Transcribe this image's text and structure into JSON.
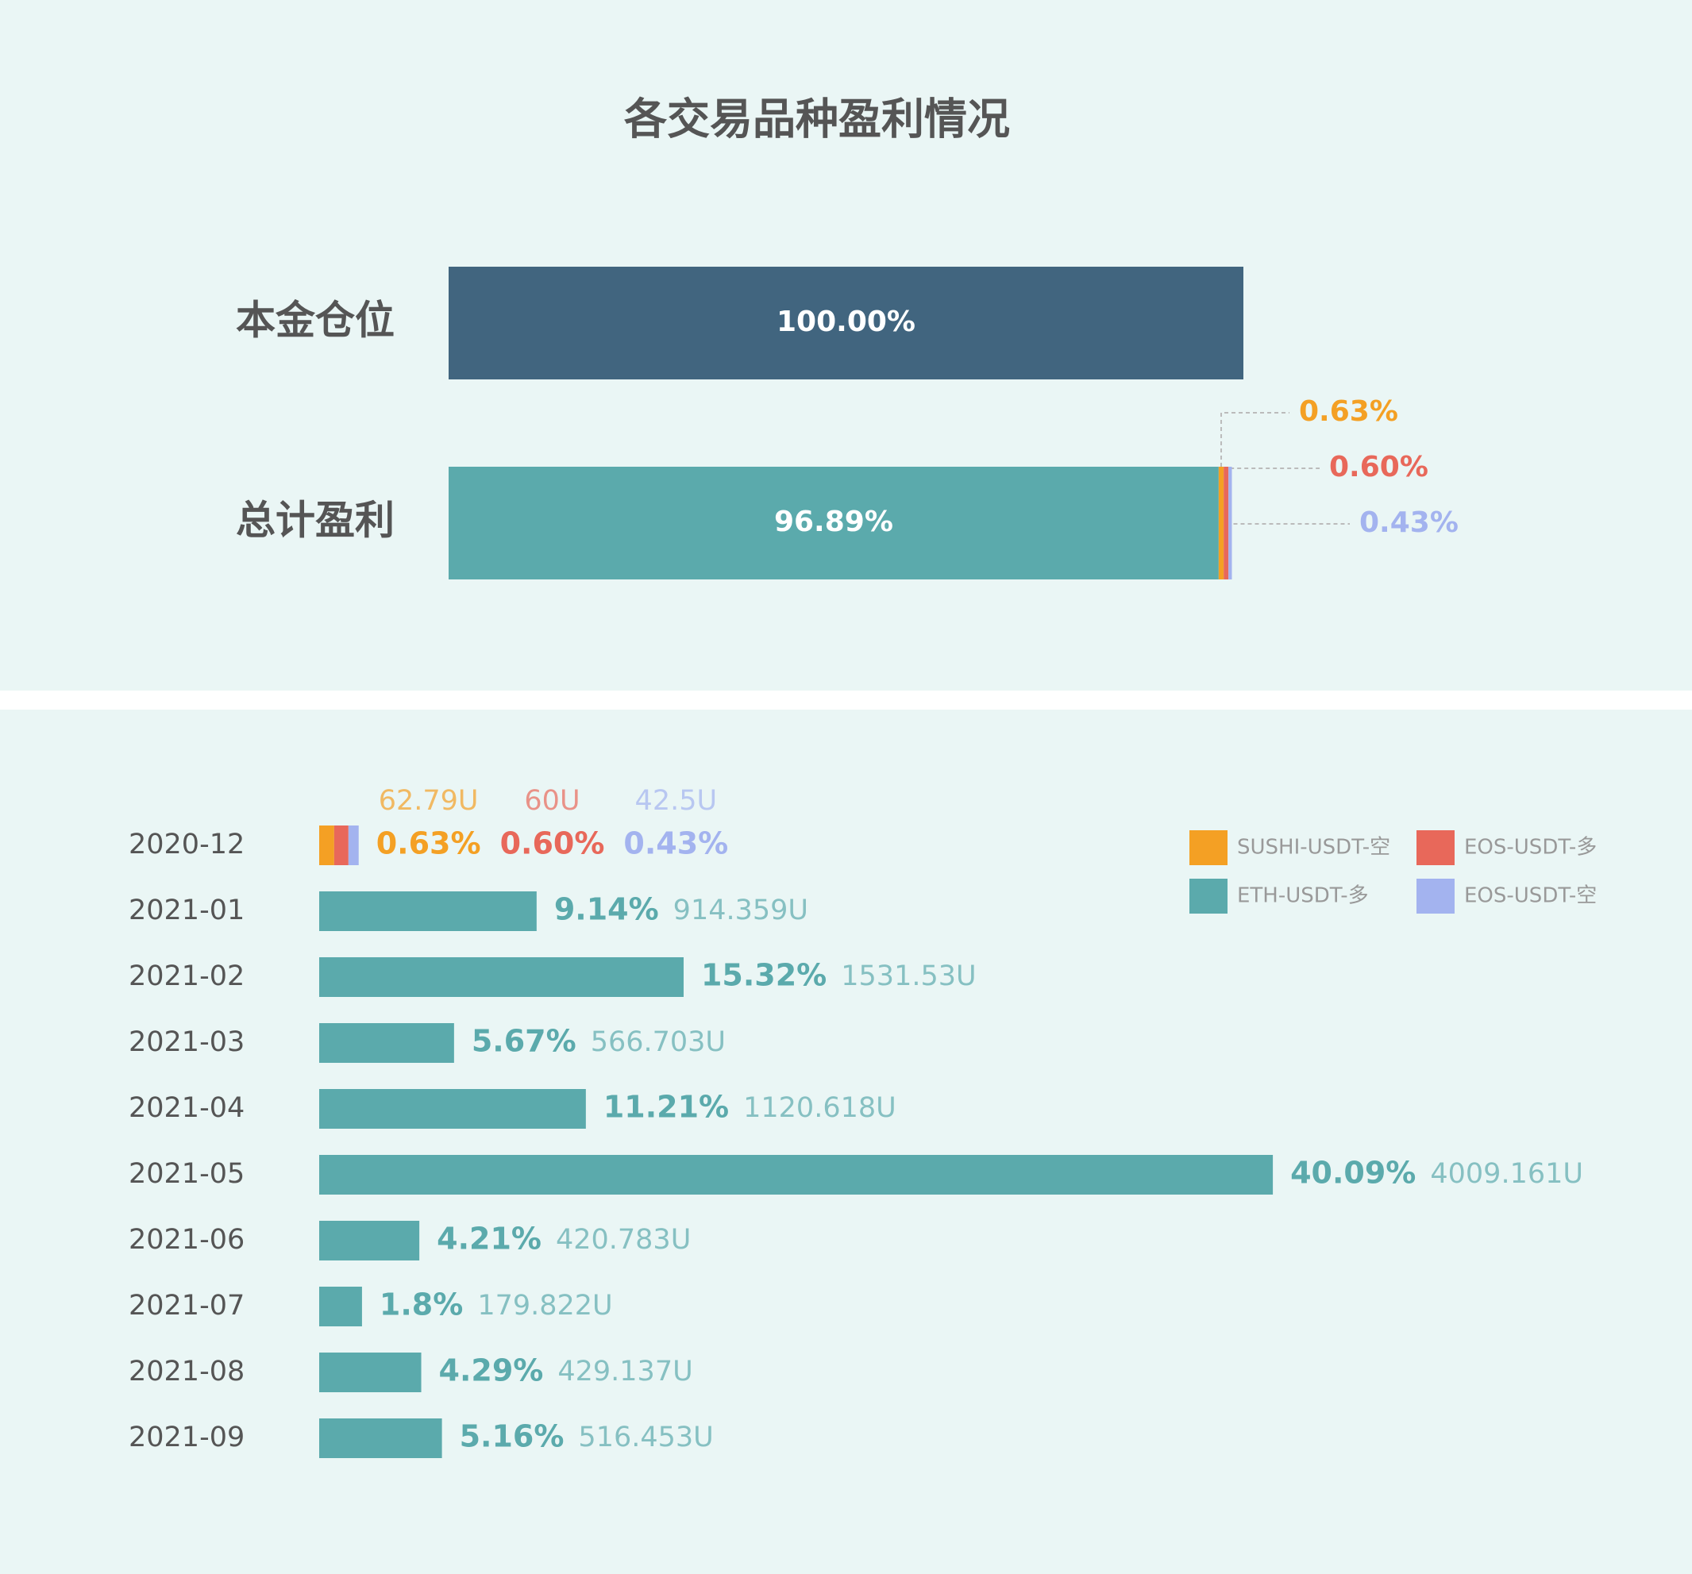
{
  "chart_data": [
    {
      "type": "stacked-bar-h",
      "title": "各交易品种盈利情况",
      "categories": [
        "本金仓位",
        "总计盈利"
      ],
      "xlim": [
        0,
        100
      ],
      "series": [
        {
          "color": "#41657f",
          "values": [
            100,
            null
          ],
          "value_labels": [
            "100.00%",
            null
          ]
        },
        {
          "color": "#5baaac",
          "values": [
            null,
            96.89
          ],
          "value_labels": [
            null,
            "96.89%"
          ]
        },
        {
          "color": "#f4a024",
          "values": [
            null,
            0.63
          ],
          "value_labels": [
            null,
            "0.63%"
          ]
        },
        {
          "color": "#e8685a",
          "values": [
            null,
            0.6
          ],
          "value_labels": [
            null,
            "0.60%"
          ]
        },
        {
          "color": "#a3b3ef",
          "values": [
            null,
            0.43
          ],
          "value_labels": [
            null,
            "0.43%"
          ]
        }
      ]
    },
    {
      "type": "stacked-bar-h",
      "categories": [
        "2020-12",
        "2021-01",
        "2021-02",
        "2021-03",
        "2021-04",
        "2021-05",
        "2021-06",
        "2021-07",
        "2021-08",
        "2021-09"
      ],
      "xlim": [
        0,
        50
      ],
      "legend": "top-right",
      "series": [
        {
          "name": "SUSHI-USDT-空",
          "color": "#f4a024",
          "values": [
            0.63,
            null,
            null,
            null,
            null,
            null,
            null,
            null,
            null,
            null
          ],
          "value_labels": [
            "0.63%",
            null,
            null,
            null,
            null,
            null,
            null,
            null,
            null,
            null
          ],
          "amounts": [
            62.79,
            null,
            null,
            null,
            null,
            null,
            null,
            null,
            null,
            null
          ],
          "amount_labels": [
            "62.79U",
            null,
            null,
            null,
            null,
            null,
            null,
            null,
            null,
            null
          ]
        },
        {
          "name": "EOS-USDT-多",
          "color": "#e8685a",
          "values": [
            0.6,
            null,
            null,
            null,
            null,
            null,
            null,
            null,
            null,
            null
          ],
          "value_labels": [
            "0.60%",
            null,
            null,
            null,
            null,
            null,
            null,
            null,
            null,
            null
          ],
          "amounts": [
            60,
            null,
            null,
            null,
            null,
            null,
            null,
            null,
            null,
            null
          ],
          "amount_labels": [
            "60U",
            null,
            null,
            null,
            null,
            null,
            null,
            null,
            null,
            null
          ]
        },
        {
          "name": "ETH-USDT-多",
          "color": "#5baaac",
          "values": [
            null,
            9.14,
            15.32,
            5.67,
            11.21,
            40.09,
            4.21,
            1.8,
            4.29,
            5.16
          ],
          "value_labels": [
            null,
            "9.14%",
            "15.32%",
            "5.67%",
            "11.21%",
            "40.09%",
            "4.21%",
            "1.8%",
            "4.29%",
            "5.16%"
          ],
          "amounts": [
            null,
            914.359,
            1531.53,
            566.703,
            1120.618,
            4009.161,
            420.783,
            179.822,
            429.137,
            516.453
          ],
          "amount_labels": [
            null,
            "914.359U",
            "1531.53U",
            "566.703U",
            "1120.618U",
            "4009.161U",
            "420.783U",
            "179.822U",
            "429.137U",
            "516.453U"
          ]
        },
        {
          "name": "EOS-USDT-空",
          "color": "#a3b3ef",
          "values": [
            0.43,
            null,
            null,
            null,
            null,
            null,
            null,
            null,
            null,
            null
          ],
          "value_labels": [
            "0.43%",
            null,
            null,
            null,
            null,
            null,
            null,
            null,
            null,
            null
          ],
          "amounts": [
            42.5,
            null,
            null,
            null,
            null,
            null,
            null,
            null,
            null,
            null
          ],
          "amount_labels": [
            "42.5U",
            null,
            null,
            null,
            null,
            null,
            null,
            null,
            null,
            null
          ]
        }
      ]
    }
  ]
}
